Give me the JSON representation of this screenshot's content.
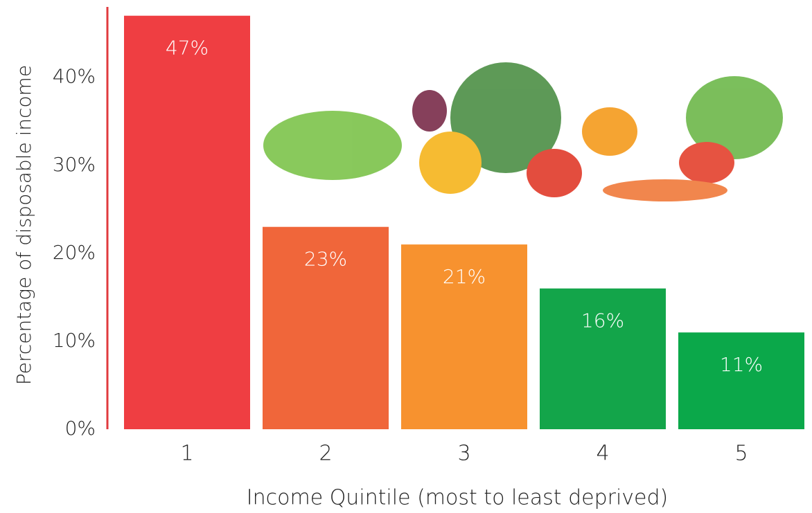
{
  "chart_data": {
    "type": "bar",
    "x_label": "Income Quintile (most to least deprived)",
    "y_label": "Percentage of disposable income",
    "categories": [
      "1",
      "2",
      "3",
      "4",
      "5"
    ],
    "values": [
      47,
      23,
      21,
      16,
      11
    ],
    "value_labels": [
      "47%",
      "23%",
      "21%",
      "16%",
      "11%"
    ],
    "colors": [
      "#ef3e42",
      "#f0663a",
      "#f7922f",
      "#13a54a",
      "#0ba84a"
    ],
    "ylim": [
      0,
      48
    ],
    "yticks": [
      {
        "value": 0,
        "label": "0%"
      },
      {
        "value": 10,
        "label": "10%"
      },
      {
        "value": 20,
        "label": "20%"
      },
      {
        "value": 30,
        "label": "30%"
      },
      {
        "value": 40,
        "label": "40%"
      }
    ],
    "grid": false
  }
}
